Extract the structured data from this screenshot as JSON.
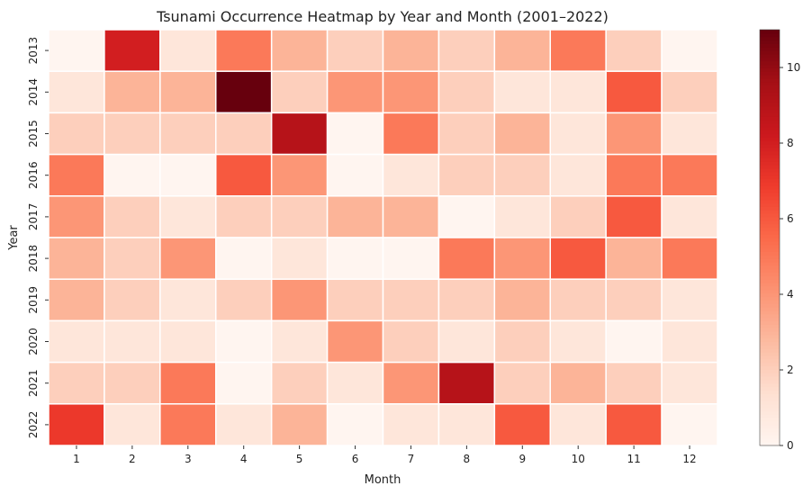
{
  "chart_data": {
    "type": "heatmap",
    "title": "Tsunami Occurrence Heatmap by Year and Month (2001–2022)",
    "xlabel": "Month",
    "ylabel": "Year",
    "x": [
      "1",
      "2",
      "3",
      "4",
      "5",
      "6",
      "7",
      "8",
      "9",
      "10",
      "11",
      "12"
    ],
    "y": [
      "2013",
      "2014",
      "2015",
      "2016",
      "2017",
      "2018",
      "2019",
      "2020",
      "2021",
      "2022"
    ],
    "values": [
      [
        0,
        8,
        1,
        5,
        3,
        2,
        3,
        2,
        3,
        5,
        2,
        0
      ],
      [
        1,
        3,
        3,
        11,
        2,
        4,
        4,
        2,
        1,
        1,
        6,
        2
      ],
      [
        2,
        2,
        2,
        2,
        9,
        0,
        5,
        2,
        3,
        1,
        4,
        1
      ],
      [
        5,
        0,
        0,
        6,
        4,
        0,
        1,
        2,
        2,
        1,
        5,
        5
      ],
      [
        4,
        2,
        1,
        2,
        2,
        3,
        3,
        0,
        1,
        2,
        6,
        1
      ],
      [
        3,
        2,
        4,
        0,
        1,
        0,
        0,
        5,
        4,
        6,
        3,
        5
      ],
      [
        3,
        2,
        1,
        2,
        4,
        2,
        2,
        2,
        3,
        2,
        2,
        1
      ],
      [
        1,
        1,
        1,
        0,
        1,
        4,
        2,
        1,
        2,
        1,
        0,
        1
      ],
      [
        2,
        2,
        5,
        0,
        2,
        1,
        4,
        9,
        2,
        3,
        2,
        1
      ],
      [
        7,
        1,
        5,
        1,
        3,
        0,
        1,
        1,
        6,
        1,
        6,
        0
      ]
    ],
    "vmin": 0,
    "vmax": 11,
    "colormap": "Reds",
    "colorbar_ticks": [
      0,
      2,
      4,
      6,
      8,
      10
    ],
    "cell_border_color": "#ffffff"
  }
}
